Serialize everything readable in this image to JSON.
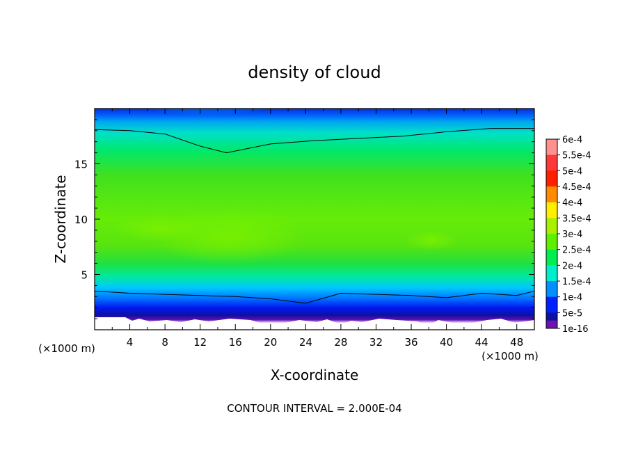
{
  "chart_data": {
    "type": "heatmap",
    "title": "density of cloud",
    "xlabel": "X-coordinate",
    "ylabel": "Z-coordinate",
    "x_unit_left": "(×1000 m)",
    "x_unit_right": "(×1000 m)",
    "xlim": [
      0,
      50
    ],
    "ylim": [
      0,
      20
    ],
    "x_ticks": [
      4,
      8,
      12,
      16,
      20,
      24,
      28,
      32,
      36,
      40,
      44,
      48
    ],
    "y_ticks": [
      5,
      10,
      15
    ],
    "colorbar": {
      "labels": [
        "6e-4",
        "5.5e-4",
        "5e-4",
        "4.5e-4",
        "4e-4",
        "3.5e-4",
        "3e-4",
        "2.5e-4",
        "2e-4",
        "1.5e-4",
        "1e-4",
        "5e-5",
        "1e-16"
      ],
      "colors": [
        "#ff9090",
        "#ff3838",
        "#ff2000",
        "#ff8c00",
        "#ffee00",
        "#aaee00",
        "#5ef000",
        "#00ee50",
        "#00eecc",
        "#0090ff",
        "#0020ff",
        "#1010a0",
        "#7010b0"
      ]
    },
    "footer": "CONTOUR INTERVAL = 2.000E-04",
    "contours": [
      {
        "level": "2e-4",
        "x": [
          0,
          4,
          8,
          12,
          15,
          20,
          25,
          30,
          35,
          40,
          45,
          50
        ],
        "y": [
          18.1,
          18.0,
          17.7,
          16.6,
          16.0,
          16.8,
          17.1,
          17.3,
          17.5,
          17.9,
          18.2,
          18.2
        ]
      },
      {
        "level": "1e-4",
        "x": [
          0,
          4,
          8,
          12,
          16,
          20,
          24,
          28,
          32,
          36,
          40,
          44,
          48,
          50
        ],
        "y": [
          3.5,
          3.3,
          3.2,
          3.1,
          3.0,
          2.8,
          2.4,
          3.3,
          3.2,
          3.1,
          2.9,
          3.3,
          3.1,
          3.5
        ]
      }
    ]
  }
}
